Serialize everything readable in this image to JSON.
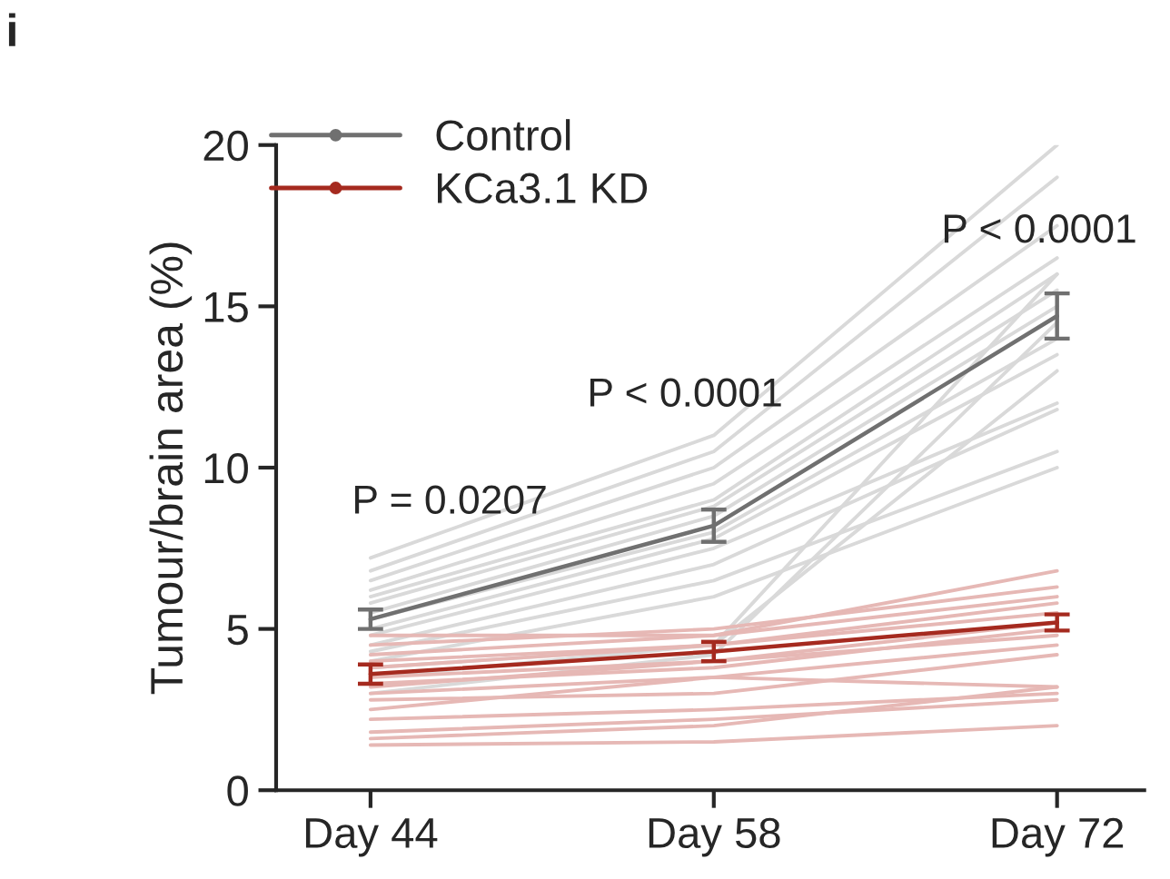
{
  "chart_data": {
    "type": "line",
    "ylabel": "Tumour/brain area (%)",
    "categories": [
      "Day 44",
      "Day 58",
      "Day 72"
    ],
    "ylim": [
      0,
      20
    ],
    "yticks": [
      0,
      5,
      10,
      15,
      20
    ],
    "grid": false,
    "legend": "top left",
    "line_style": "solid",
    "series": [
      {
        "color": "#d9d9d9",
        "values": [
          7.2,
          11,
          20
        ]
      },
      {
        "color": "#d9d9d9",
        "values": [
          6.8,
          10.5,
          19
        ]
      },
      {
        "color": "#d9d9d9",
        "values": [
          6.5,
          10,
          17.5
        ]
      },
      {
        "color": "#d9d9d9",
        "values": [
          6.2,
          9.5,
          16.5
        ]
      },
      {
        "color": "#d9d9d9",
        "values": [
          6,
          9,
          16
        ]
      },
      {
        "color": "#d9d9d9",
        "values": [
          5.8,
          8.8,
          15.5
        ]
      },
      {
        "color": "#d9d9d9",
        "values": [
          5.5,
          8.5,
          15
        ]
      },
      {
        "color": "#d9d9d9",
        "values": [
          5.3,
          8,
          14
        ]
      },
      {
        "color": "#d9d9d9",
        "values": [
          5,
          7.8,
          13.5
        ]
      },
      {
        "color": "#d9d9d9",
        "values": [
          4.8,
          7.5,
          12
        ]
      },
      {
        "color": "#d9d9d9",
        "values": [
          4.5,
          7,
          11.8
        ]
      },
      {
        "color": "#d9d9d9",
        "values": [
          4.3,
          6.5,
          10.5
        ]
      },
      {
        "color": "#d9d9d9",
        "values": [
          4,
          6,
          10
        ]
      },
      {
        "color": "#d9d9d9",
        "values": [
          3.5,
          4.5,
          16
        ]
      },
      {
        "color": "#d9d9d9",
        "values": [
          3,
          4.2,
          14.5
        ]
      },
      {
        "color": "#d9d9d9",
        "values": [
          3.8,
          4.5,
          13
        ]
      },
      {
        "color": "#e6b8b5",
        "values": [
          4.8,
          4.8,
          6.8
        ]
      },
      {
        "color": "#e6b8b5",
        "values": [
          4.5,
          5,
          6.3
        ]
      },
      {
        "color": "#e6b8b5",
        "values": [
          4.2,
          4.8,
          6
        ]
      },
      {
        "color": "#e6b8b5",
        "values": [
          4,
          4.5,
          5.8
        ]
      },
      {
        "color": "#e6b8b5",
        "values": [
          3.8,
          4.5,
          5.5
        ]
      },
      {
        "color": "#e6b8b5",
        "values": [
          3.5,
          4,
          5.2
        ]
      },
      {
        "color": "#e6b8b5",
        "values": [
          3.3,
          3.8,
          5
        ]
      },
      {
        "color": "#e6b8b5",
        "values": [
          3.2,
          4,
          4.8
        ]
      },
      {
        "color": "#e6b8b5",
        "values": [
          3,
          3.5,
          4.5
        ]
      },
      {
        "color": "#e6b8b5",
        "values": [
          2.8,
          3,
          4.2
        ]
      },
      {
        "color": "#e6b8b5",
        "values": [
          2.5,
          3.5,
          3.2
        ]
      },
      {
        "color": "#e6b8b5",
        "values": [
          2.2,
          2.5,
          3
        ]
      },
      {
        "color": "#e6b8b5",
        "values": [
          1.8,
          2.2,
          2.8
        ]
      },
      {
        "color": "#e6b8b5",
        "values": [
          1.6,
          2,
          3.2
        ]
      },
      {
        "color": "#e6b8b5",
        "values": [
          1.4,
          1.5,
          2
        ]
      },
      {
        "name": "Control",
        "color": "#707070",
        "values": [
          5.3,
          8.2,
          14.7
        ],
        "errors": [
          0.3,
          0.5,
          0.7
        ]
      },
      {
        "name": "KCa3.1 KD",
        "color": "#a52a1f",
        "values": [
          3.6,
          4.3,
          5.2
        ],
        "errors": [
          0.3,
          0.3,
          0.25
        ]
      }
    ],
    "annotations": [
      "i",
      "P = 0.0207",
      "P < 0.0001",
      "P < 0.0001"
    ]
  }
}
